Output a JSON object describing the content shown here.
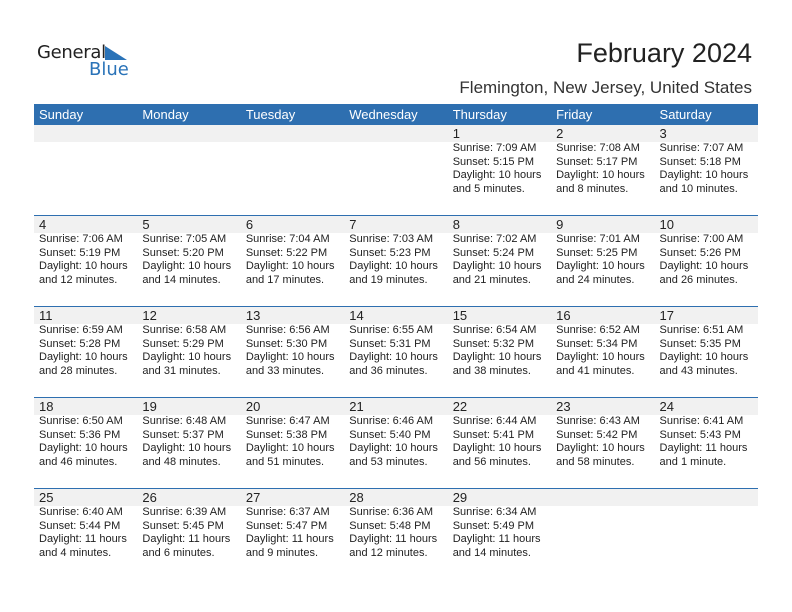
{
  "logo": {
    "word1": "General",
    "word2": "Blue",
    "accent": "#2a73b8"
  },
  "title": "February 2024",
  "location": "Flemington, New Jersey, United States",
  "colors": {
    "header": "#2e6fb0",
    "band": "#f1f1f1"
  },
  "weekdays": [
    "Sunday",
    "Monday",
    "Tuesday",
    "Wednesday",
    "Thursday",
    "Friday",
    "Saturday"
  ],
  "weeks": [
    [
      null,
      null,
      null,
      null,
      {
        "day": "1",
        "sunrise": "Sunrise: 7:09 AM",
        "sunset": "Sunset: 5:15 PM",
        "daylight1": "Daylight: 10 hours",
        "daylight2": "and 5 minutes."
      },
      {
        "day": "2",
        "sunrise": "Sunrise: 7:08 AM",
        "sunset": "Sunset: 5:17 PM",
        "daylight1": "Daylight: 10 hours",
        "daylight2": "and 8 minutes."
      },
      {
        "day": "3",
        "sunrise": "Sunrise: 7:07 AM",
        "sunset": "Sunset: 5:18 PM",
        "daylight1": "Daylight: 10 hours",
        "daylight2": "and 10 minutes."
      }
    ],
    [
      {
        "day": "4",
        "sunrise": "Sunrise: 7:06 AM",
        "sunset": "Sunset: 5:19 PM",
        "daylight1": "Daylight: 10 hours",
        "daylight2": "and 12 minutes."
      },
      {
        "day": "5",
        "sunrise": "Sunrise: 7:05 AM",
        "sunset": "Sunset: 5:20 PM",
        "daylight1": "Daylight: 10 hours",
        "daylight2": "and 14 minutes."
      },
      {
        "day": "6",
        "sunrise": "Sunrise: 7:04 AM",
        "sunset": "Sunset: 5:22 PM",
        "daylight1": "Daylight: 10 hours",
        "daylight2": "and 17 minutes."
      },
      {
        "day": "7",
        "sunrise": "Sunrise: 7:03 AM",
        "sunset": "Sunset: 5:23 PM",
        "daylight1": "Daylight: 10 hours",
        "daylight2": "and 19 minutes."
      },
      {
        "day": "8",
        "sunrise": "Sunrise: 7:02 AM",
        "sunset": "Sunset: 5:24 PM",
        "daylight1": "Daylight: 10 hours",
        "daylight2": "and 21 minutes."
      },
      {
        "day": "9",
        "sunrise": "Sunrise: 7:01 AM",
        "sunset": "Sunset: 5:25 PM",
        "daylight1": "Daylight: 10 hours",
        "daylight2": "and 24 minutes."
      },
      {
        "day": "10",
        "sunrise": "Sunrise: 7:00 AM",
        "sunset": "Sunset: 5:26 PM",
        "daylight1": "Daylight: 10 hours",
        "daylight2": "and 26 minutes."
      }
    ],
    [
      {
        "day": "11",
        "sunrise": "Sunrise: 6:59 AM",
        "sunset": "Sunset: 5:28 PM",
        "daylight1": "Daylight: 10 hours",
        "daylight2": "and 28 minutes."
      },
      {
        "day": "12",
        "sunrise": "Sunrise: 6:58 AM",
        "sunset": "Sunset: 5:29 PM",
        "daylight1": "Daylight: 10 hours",
        "daylight2": "and 31 minutes."
      },
      {
        "day": "13",
        "sunrise": "Sunrise: 6:56 AM",
        "sunset": "Sunset: 5:30 PM",
        "daylight1": "Daylight: 10 hours",
        "daylight2": "and 33 minutes."
      },
      {
        "day": "14",
        "sunrise": "Sunrise: 6:55 AM",
        "sunset": "Sunset: 5:31 PM",
        "daylight1": "Daylight: 10 hours",
        "daylight2": "and 36 minutes."
      },
      {
        "day": "15",
        "sunrise": "Sunrise: 6:54 AM",
        "sunset": "Sunset: 5:32 PM",
        "daylight1": "Daylight: 10 hours",
        "daylight2": "and 38 minutes."
      },
      {
        "day": "16",
        "sunrise": "Sunrise: 6:52 AM",
        "sunset": "Sunset: 5:34 PM",
        "daylight1": "Daylight: 10 hours",
        "daylight2": "and 41 minutes."
      },
      {
        "day": "17",
        "sunrise": "Sunrise: 6:51 AM",
        "sunset": "Sunset: 5:35 PM",
        "daylight1": "Daylight: 10 hours",
        "daylight2": "and 43 minutes."
      }
    ],
    [
      {
        "day": "18",
        "sunrise": "Sunrise: 6:50 AM",
        "sunset": "Sunset: 5:36 PM",
        "daylight1": "Daylight: 10 hours",
        "daylight2": "and 46 minutes."
      },
      {
        "day": "19",
        "sunrise": "Sunrise: 6:48 AM",
        "sunset": "Sunset: 5:37 PM",
        "daylight1": "Daylight: 10 hours",
        "daylight2": "and 48 minutes."
      },
      {
        "day": "20",
        "sunrise": "Sunrise: 6:47 AM",
        "sunset": "Sunset: 5:38 PM",
        "daylight1": "Daylight: 10 hours",
        "daylight2": "and 51 minutes."
      },
      {
        "day": "21",
        "sunrise": "Sunrise: 6:46 AM",
        "sunset": "Sunset: 5:40 PM",
        "daylight1": "Daylight: 10 hours",
        "daylight2": "and 53 minutes."
      },
      {
        "day": "22",
        "sunrise": "Sunrise: 6:44 AM",
        "sunset": "Sunset: 5:41 PM",
        "daylight1": "Daylight: 10 hours",
        "daylight2": "and 56 minutes."
      },
      {
        "day": "23",
        "sunrise": "Sunrise: 6:43 AM",
        "sunset": "Sunset: 5:42 PM",
        "daylight1": "Daylight: 10 hours",
        "daylight2": "and 58 minutes."
      },
      {
        "day": "24",
        "sunrise": "Sunrise: 6:41 AM",
        "sunset": "Sunset: 5:43 PM",
        "daylight1": "Daylight: 11 hours",
        "daylight2": "and 1 minute."
      }
    ],
    [
      {
        "day": "25",
        "sunrise": "Sunrise: 6:40 AM",
        "sunset": "Sunset: 5:44 PM",
        "daylight1": "Daylight: 11 hours",
        "daylight2": "and 4 minutes."
      },
      {
        "day": "26",
        "sunrise": "Sunrise: 6:39 AM",
        "sunset": "Sunset: 5:45 PM",
        "daylight1": "Daylight: 11 hours",
        "daylight2": "and 6 minutes."
      },
      {
        "day": "27",
        "sunrise": "Sunrise: 6:37 AM",
        "sunset": "Sunset: 5:47 PM",
        "daylight1": "Daylight: 11 hours",
        "daylight2": "and 9 minutes."
      },
      {
        "day": "28",
        "sunrise": "Sunrise: 6:36 AM",
        "sunset": "Sunset: 5:48 PM",
        "daylight1": "Daylight: 11 hours",
        "daylight2": "and 12 minutes."
      },
      {
        "day": "29",
        "sunrise": "Sunrise: 6:34 AM",
        "sunset": "Sunset: 5:49 PM",
        "daylight1": "Daylight: 11 hours",
        "daylight2": "and 14 minutes."
      },
      null,
      null
    ]
  ]
}
